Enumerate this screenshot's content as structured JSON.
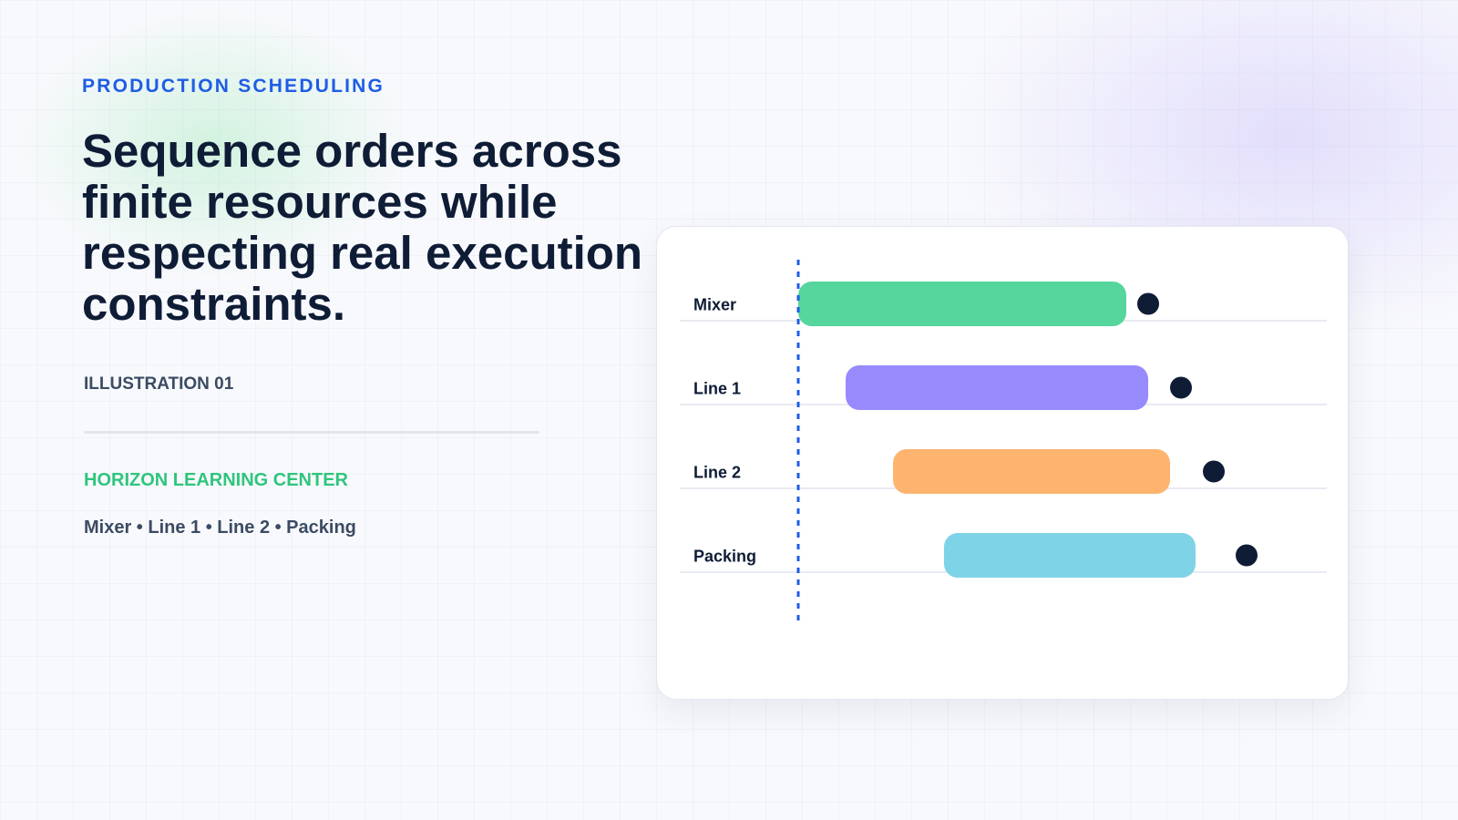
{
  "eyebrow": "PRODUCTION SCHEDULING",
  "headline": "Sequence orders across finite resources while respecting real execution constraints.",
  "illustration_label": "ILLUSTRATION 01",
  "organization": "HORIZON LEARNING CENTER",
  "resources_line": "Mixer • Line 1 • Line 2 • Packing",
  "colors": {
    "accent_blue": "#1f5ce6",
    "headline": "#0f1c36",
    "org_green": "#2fc57e",
    "marker": "#0f1c36"
  },
  "gantt": {
    "rows": [
      {
        "label": "Mixer",
        "start": 0,
        "end": 45,
        "marker": 48,
        "color": "#56d59c"
      },
      {
        "label": "Line 1",
        "start": 6.5,
        "end": 48,
        "marker": 52.5,
        "color": "#978afd"
      },
      {
        "label": "Line 2",
        "start": 13,
        "end": 51,
        "marker": 57,
        "color": "#feb46f"
      },
      {
        "label": "Packing",
        "start": 20,
        "end": 54.5,
        "marker": 61.5,
        "color": "#7fd3e6"
      }
    ],
    "now_line": 0,
    "now_line_color": "#1f5ce6"
  }
}
